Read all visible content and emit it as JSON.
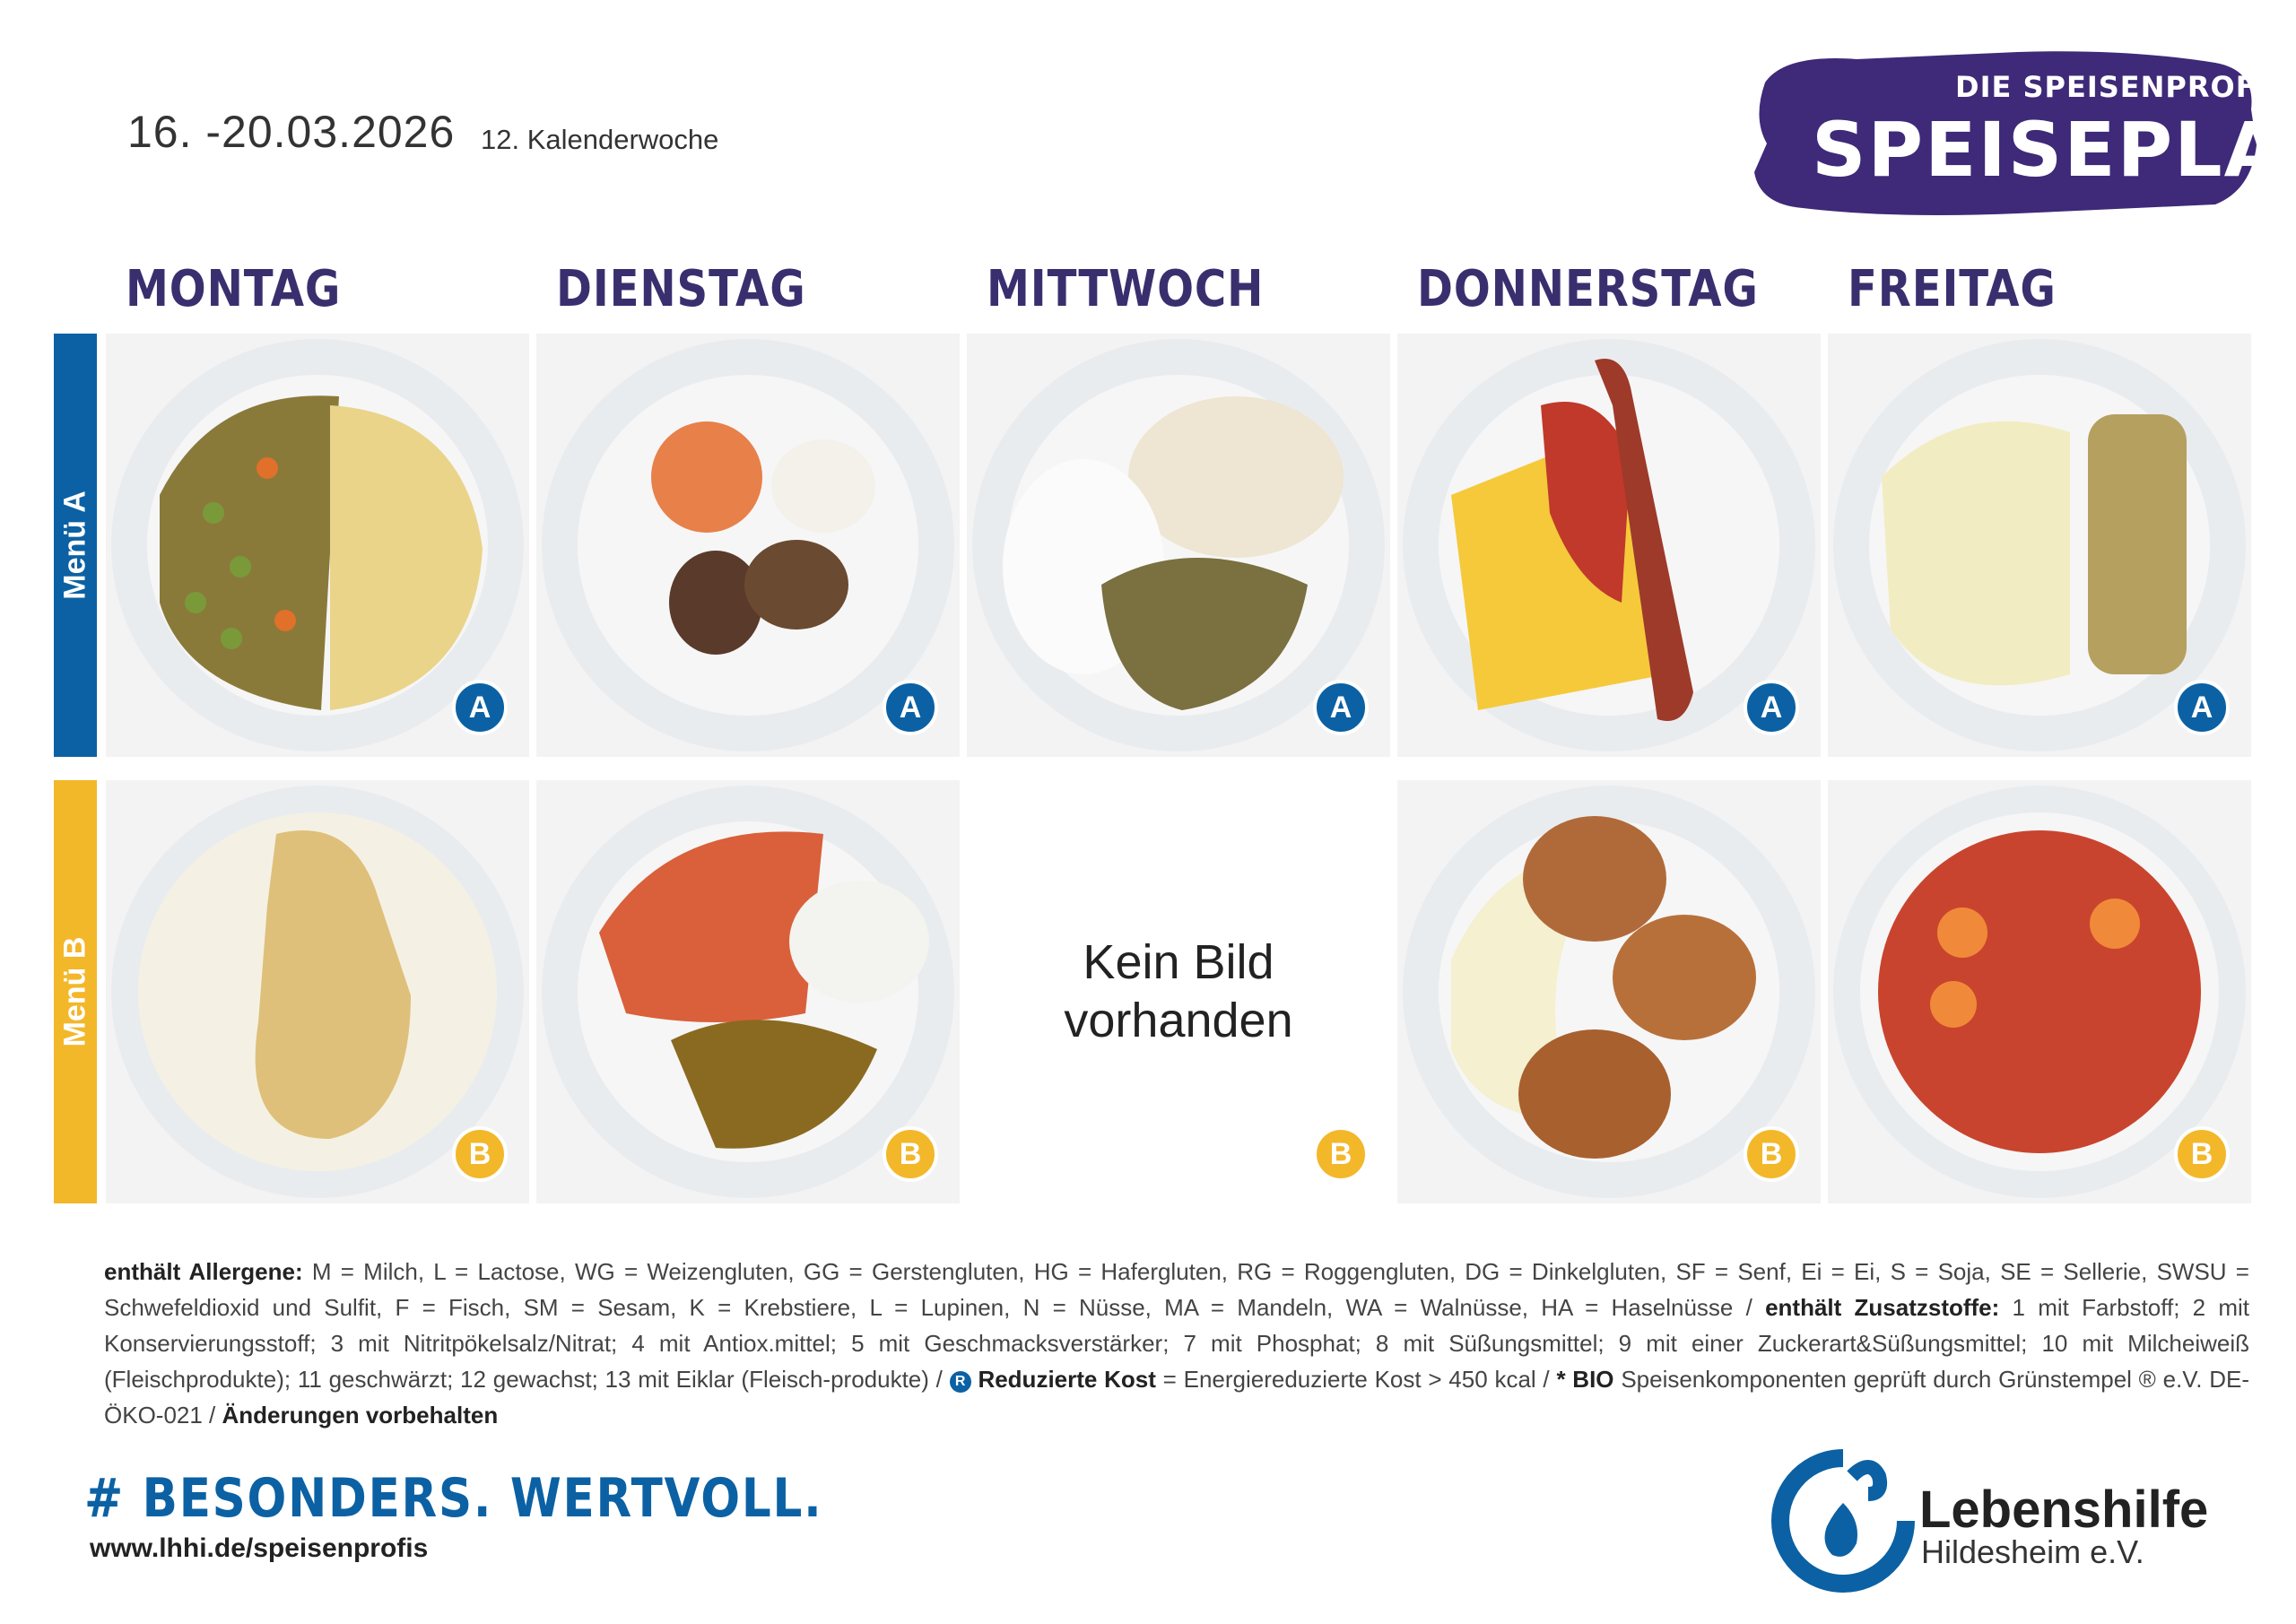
{
  "header": {
    "date_range": "16. -20.03.2026",
    "week_label": "12. Kalenderwoche",
    "logo_subtitle": "DIE SPEISENPROFIS",
    "logo_title": "SPEISEPLAN"
  },
  "days": [
    "MONTAG",
    "DIENSTAG",
    "MITTWOCH",
    "DONNERSTAG",
    "FREITAG"
  ],
  "menus": {
    "a_label": "Menü A",
    "b_label": "Menü B",
    "a_badge": "A",
    "b_badge": "B"
  },
  "no_image": {
    "text": "Kein Bild vorhanden"
  },
  "legend": {
    "allergens_label": "enthält Allergene:",
    "allergens_text": "M = Milch, L = Lactose, WG = Weizengluten, GG = Gerstengluten, HG = Hafergluten, RG = Roggengluten, DG = Dinkelgluten, SF = Senf, Ei = Ei, S = Soja, SE = Sellerie, SWSU = Schwefeldioxid und Sulfit, F = Fisch, SM = Sesam, K = Krebstiere, L = Lupinen, N = Nüsse, MA = Mandeln, WA = Walnüsse, HA =  Haselnüsse /",
    "additives_label": "enthält Zusatzstoffe:",
    "additives_text": "1 mit Farbstoff; 2 mit Konservierungsstoff; 3 mit Nitritpökelsalz/Nitrat; 4 mit Antiox.mittel; 5 mit Geschmacksverstärker; 7 mit Phosphat; 8 mit Süßungsmittel; 9 mit einer Zuckerart&Süßungsmittel; 10 mit Milcheiweiß (Fleischprodukte); 11 geschwärzt; 12 gewachst; 13 mit Eiklar (Fleisch-produkte) /",
    "reduced_symbol": "R",
    "reduced_label": "Reduzierte Kost",
    "reduced_text": "= Energiereduzierte Kost > 450 kcal /",
    "bio_label": "* BIO",
    "bio_text": "Speisenkomponenten geprüft durch Grünstempel ® e.V. DE-ÖKO-021 /",
    "changes_label": "Änderungen vorbehalten"
  },
  "footer": {
    "hashtag": "# BESONDERS. WERTVOLL.",
    "url": "www.lhhi.de/speisenprofis",
    "org_name": "Lebenshilfe",
    "org_city": "Hildesheim e.V."
  },
  "colors": {
    "menu_a": "#0b61a3",
    "menu_b": "#f3b72a",
    "day_heading": "#3a2f6e",
    "logo_brush": "#3e2a78"
  }
}
